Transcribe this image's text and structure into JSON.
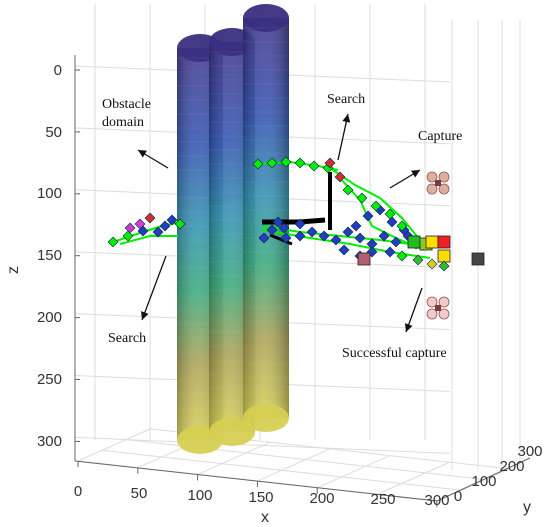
{
  "chart_data": {
    "type": "scatter",
    "dimensions": "3d",
    "title": "",
    "xlabel": "x",
    "ylabel": "y",
    "zlabel": "z",
    "x_ticks": [
      "0",
      "50",
      "100",
      "150",
      "200",
      "250",
      "300"
    ],
    "y_ticks": [
      "0",
      "100",
      "200",
      "300"
    ],
    "z_ticks": [
      "0",
      "50",
      "100",
      "150",
      "200",
      "250",
      "300"
    ],
    "xlim": [
      0,
      300
    ],
    "ylim": [
      0,
      300
    ],
    "zlim": [
      0,
      310
    ],
    "z_reversed": true,
    "grid": true,
    "obstacles": {
      "shape": "vertical cylinders",
      "count": 3,
      "x_centers": [
        110,
        135,
        160
      ],
      "z_range": [
        0,
        305
      ],
      "colormap": [
        "#3b2f8a",
        "#2b4fb0",
        "#2a8fb0",
        "#32a878",
        "#a8b04a",
        "#d8d050"
      ]
    },
    "paths": {
      "colors": [
        "#00ee00",
        "#1e3fbf",
        "#000000"
      ],
      "left_search": [
        [
          30,
          140
        ],
        [
          60,
          132
        ],
        [
          85,
          124
        ],
        [
          110,
          122
        ]
      ],
      "left_search_low": [
        [
          30,
          143
        ],
        [
          60,
          140
        ],
        [
          90,
          136
        ]
      ],
      "right_search": [
        [
          150,
          77
        ],
        [
          190,
          77
        ],
        [
          215,
          77
        ],
        [
          222,
          90
        ]
      ],
      "capture_group": [
        [
          150,
          124
        ],
        [
          200,
          128
        ],
        [
          240,
          134
        ],
        [
          280,
          140
        ],
        [
          310,
          146
        ]
      ]
    },
    "annotations": [
      {
        "text_lines": [
          "Obstacle",
          "domain"
        ]
      },
      {
        "text_lines": [
          "Search"
        ]
      },
      {
        "text_lines": [
          "Capture"
        ]
      },
      {
        "text_lines": [
          "Search"
        ]
      },
      {
        "text_lines": [
          "Successful capture"
        ]
      }
    ]
  }
}
